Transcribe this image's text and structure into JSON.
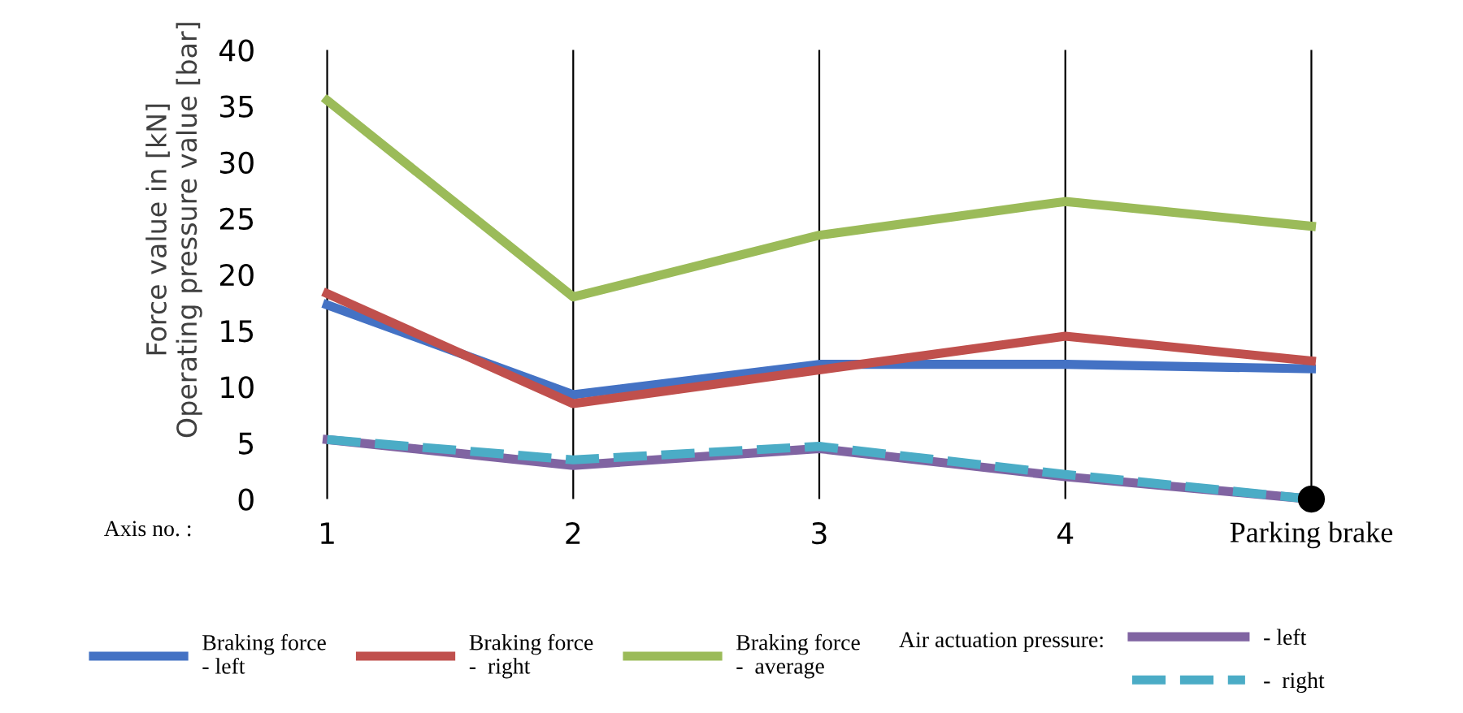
{
  "chart_data": {
    "type": "line",
    "xlabel": "Axis no. :",
    "ylabel": "Force value in [kN]\nOperating pressure value [bar]",
    "categories": [
      "1",
      "2",
      "3",
      "4",
      "Parking brake"
    ],
    "series": [
      {
        "name": "Braking force\n- left",
        "color": "#4472c4",
        "values": [
          17.3,
          9.3,
          12,
          12,
          11.6
        ]
      },
      {
        "name": "Braking force\n-  right",
        "color": "#c0504d",
        "values": [
          18.3,
          8.5,
          11.5,
          14.5,
          12.3
        ]
      },
      {
        "name": "Braking force\n-  average",
        "color": "#9bbb59",
        "values": [
          35.5,
          18,
          23.5,
          26.5,
          24.3
        ]
      },
      {
        "name": "- left",
        "color": "#8064a2",
        "values": [
          5.3,
          3,
          4.5,
          2,
          0
        ]
      },
      {
        "name": "-  right",
        "color": "#4bacc6",
        "line_style": "dashed",
        "values": [
          5.3,
          3.5,
          4.7,
          2.2,
          0
        ]
      },
      {
        "type": "scatter",
        "color": "#000000",
        "marker": "circle",
        "values": [
          null,
          null,
          null,
          null,
          0
        ]
      }
    ],
    "ylim": [
      0,
      40
    ],
    "yticks": [
      0,
      5,
      10,
      15,
      20,
      25,
      30,
      35,
      40
    ],
    "grid": "x",
    "legend": "bottom",
    "annotations": [
      "Air actuation pressure:"
    ]
  }
}
